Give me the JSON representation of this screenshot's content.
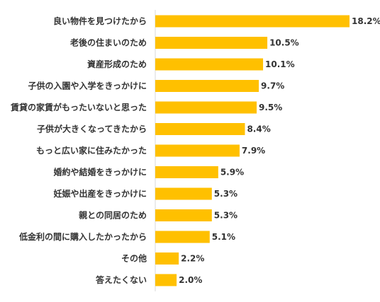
{
  "chart_data": {
    "type": "bar",
    "orientation": "horizontal",
    "categories": [
      "良い物件を見つけたから",
      "老後の住まいのため",
      "資産形成のため",
      "子供の入園や入学をきっかけに",
      "賃貸の家賃がもったいないと思った",
      "子供が大きくなってきたから",
      "もっと広い家に住みたかった",
      "婚約や結婚をきっかけに",
      "妊娠や出産をきっかけに",
      "親との同居のため",
      "低金利の間に購入したかったから",
      "その他",
      "答えたくない"
    ],
    "values": [
      18.2,
      10.5,
      10.1,
      9.7,
      9.5,
      8.4,
      7.9,
      5.9,
      5.3,
      5.3,
      5.1,
      2.2,
      2.0
    ],
    "value_labels": [
      "18.2%",
      "10.5%",
      "10.1%",
      "9.7%",
      "9.5%",
      "8.4%",
      "7.9%",
      "5.9%",
      "5.3%",
      "5.3%",
      "5.1%",
      "2.2%",
      "2.0%"
    ],
    "bar_color": "#FFC000",
    "axis_color": "#D9D9D9",
    "xlim": [
      0,
      20
    ],
    "grid": false,
    "legend": "none"
  }
}
